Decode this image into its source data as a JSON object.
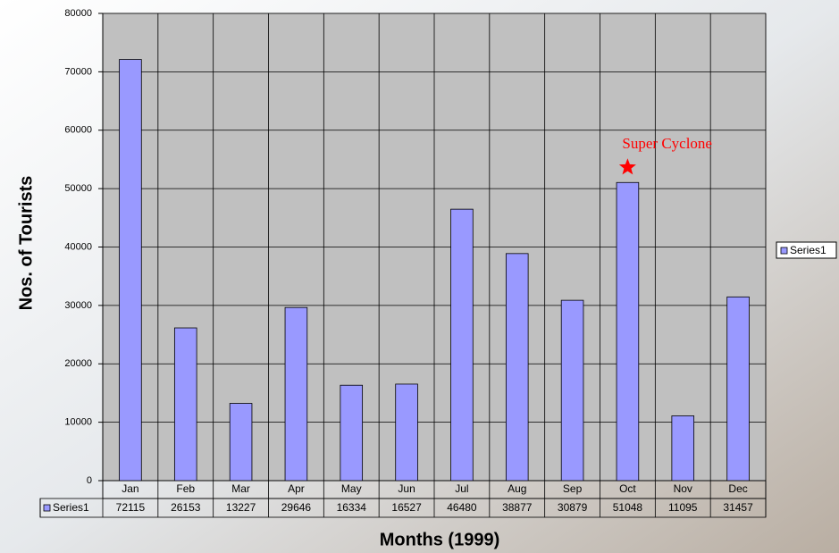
{
  "chart_data": {
    "type": "bar",
    "x_label": "Months (1999)",
    "y_label": "Nos. of Tourists",
    "categories": [
      "Jan",
      "Feb",
      "Mar",
      "Apr",
      "May",
      "Jun",
      "Jul",
      "Aug",
      "Sep",
      "Oct",
      "Nov",
      "Dec"
    ],
    "series": [
      {
        "name": "Series1",
        "color": "#9999ff",
        "values": [
          72115,
          26153,
          13227,
          29646,
          16334,
          16527,
          46480,
          38877,
          30879,
          51048,
          11095,
          31457
        ]
      }
    ],
    "ylim": [
      0,
      80000
    ],
    "yticks": [
      0,
      10000,
      20000,
      30000,
      40000,
      50000,
      60000,
      70000,
      80000
    ],
    "grid": true,
    "legend": "right",
    "data_table": true,
    "annotations": [
      {
        "text": "Super Cyclone",
        "category": "Oct",
        "color": "#ff0000"
      }
    ]
  }
}
